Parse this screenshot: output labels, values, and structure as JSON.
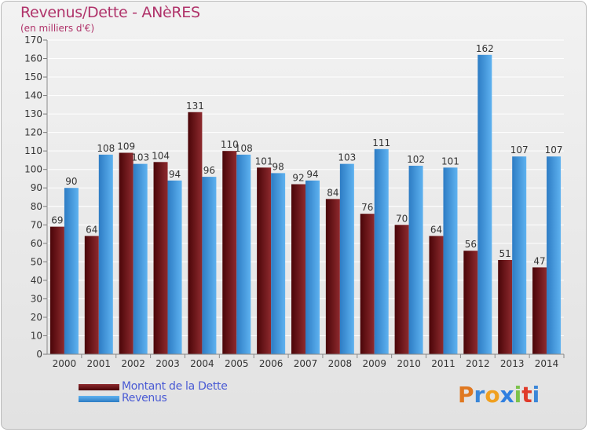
{
  "header": {
    "title": "Revenus/Dette - ANèRES",
    "subtitle": "(en milliers d'€)"
  },
  "legend": {
    "items": [
      {
        "label": "Montant de la Dette",
        "color": "#7a1c20"
      },
      {
        "label": "Revenus",
        "color": "#4aa3e6"
      }
    ]
  },
  "brand": {
    "letters": [
      "P",
      "r",
      "o",
      "x",
      "i",
      "t",
      "i"
    ],
    "colors": [
      "#e07820",
      "#3a86d8",
      "#f0a020",
      "#2f7fe0",
      "#7cc24b",
      "#e03a2a",
      "#3a86d8"
    ]
  },
  "chart_data": {
    "type": "bar",
    "categories": [
      "2000",
      "2001",
      "2002",
      "2003",
      "2004",
      "2005",
      "2006",
      "2007",
      "2008",
      "2009",
      "2010",
      "2011",
      "2012",
      "2013",
      "2014"
    ],
    "series": [
      {
        "name": "Montant de la Dette",
        "color": "#7a1c20",
        "values": [
          69,
          64,
          109,
          104,
          131,
          110,
          101,
          92,
          84,
          76,
          70,
          64,
          56,
          51,
          47
        ]
      },
      {
        "name": "Revenus",
        "color": "#4aa3e6",
        "values": [
          90,
          108,
          103,
          94,
          96,
          108,
          98,
          94,
          103,
          111,
          102,
          101,
          162,
          107,
          107
        ]
      }
    ],
    "ylim": [
      0,
      170
    ],
    "yticks": [
      0,
      10,
      20,
      30,
      40,
      50,
      60,
      70,
      80,
      90,
      100,
      110,
      120,
      130,
      140,
      150,
      160,
      170
    ],
    "grid": true,
    "legend_position": "bottom-left"
  }
}
